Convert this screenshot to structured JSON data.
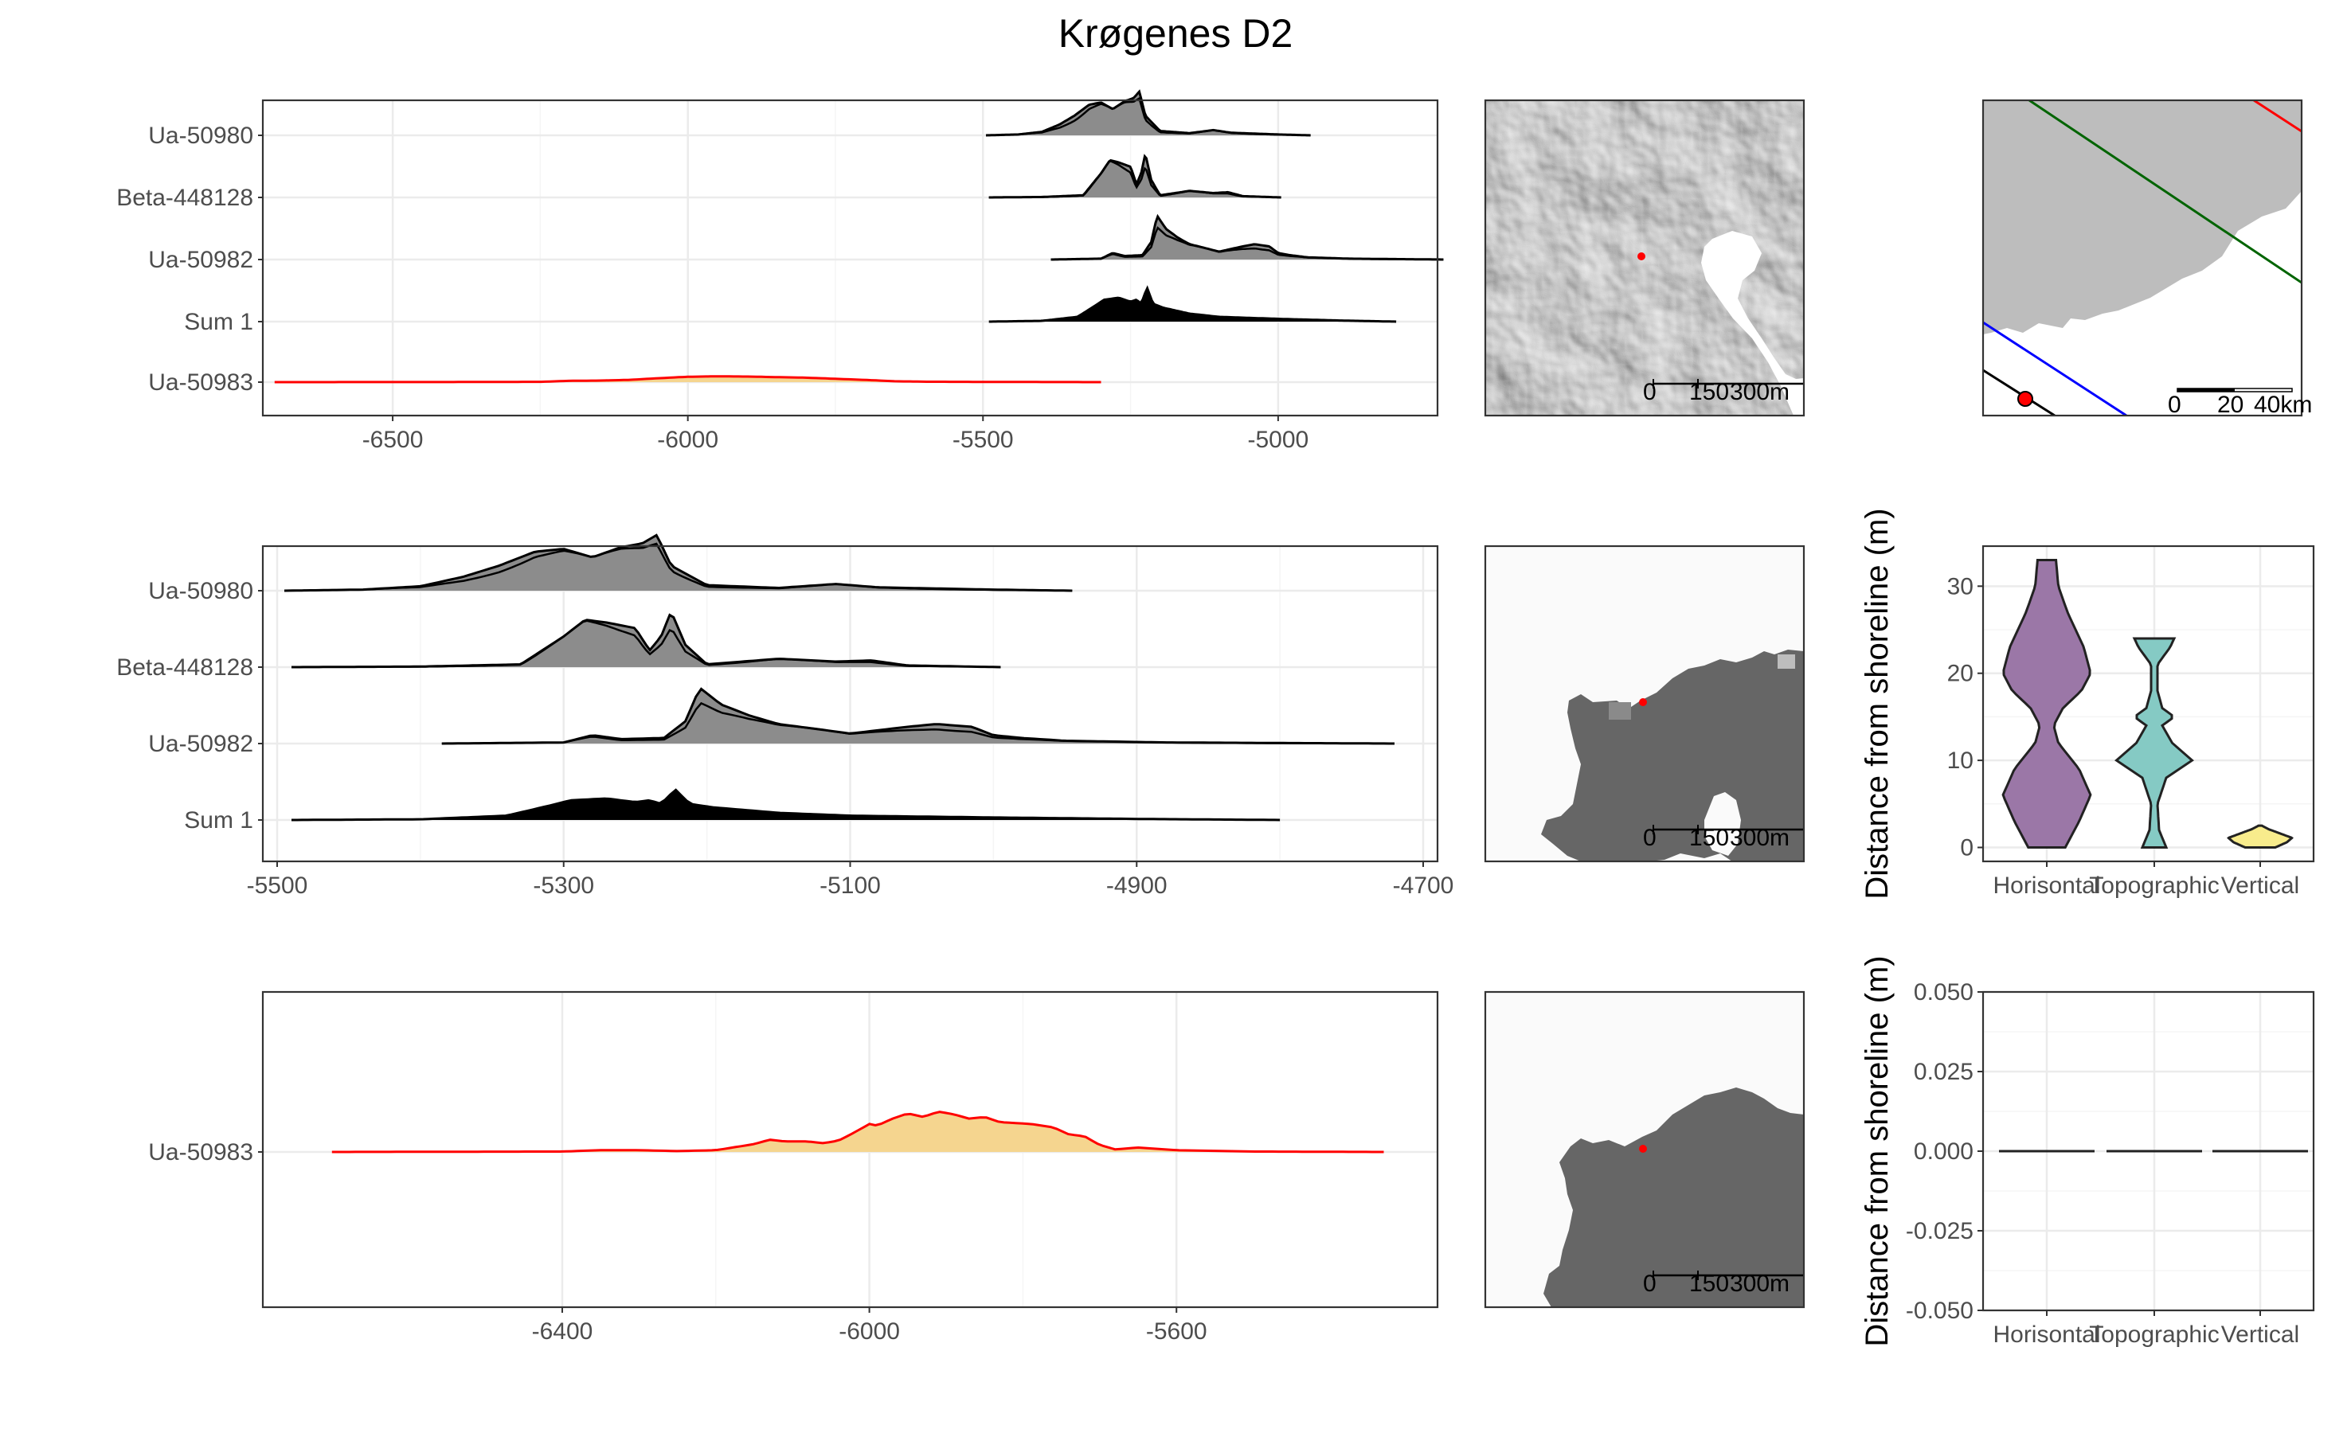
{
  "title": "Krøgenes D2",
  "colors": {
    "panel_border": "#333333",
    "grid_major": "#ebebeb",
    "grid_minor": "#f5f5f5",
    "dated_line": "#000000",
    "dated_fill": "#8c8c8c",
    "sum_fill": "#000000",
    "outlier_line": "#ff0000",
    "outlier_fill": "#f5d58f",
    "violin_horisontal": "#9b77a7",
    "violin_topographic": "#85cac4",
    "violin_vertical": "#f8ec8c",
    "map_land": "#bdbdbd",
    "sea_level_red": "#ff0000",
    "sea_level_green": "#006400",
    "sea_level_blue": "#0000ff",
    "sea_level_black": "#000000",
    "raster_land": "#666666",
    "raster_sea": "#fafafa"
  },
  "maps": {
    "hillshade": {
      "scale_labels": [
        "0",
        "150",
        "300m"
      ]
    },
    "sea_raster_1": {
      "scale_labels": [
        "0",
        "150",
        "300m"
      ]
    },
    "sea_raster_2": {
      "scale_labels": [
        "0",
        "150",
        "300m"
      ]
    },
    "overview": {
      "scale_labels": [
        "0",
        "20",
        "40km"
      ]
    }
  },
  "chart_data": [
    {
      "id": "dates_all",
      "type": "area",
      "xlim": [
        -6720,
        -4730
      ],
      "x_ticks": [
        -6500,
        -6000,
        -5500,
        -5000
      ],
      "x_tick_labels": [
        "-6500",
        "-6000",
        "-5500",
        "-5000"
      ],
      "categories": [
        "Ua-50980",
        "Beta-448128",
        "Ua-50982",
        "Sum 1",
        "Ua-50983"
      ],
      "series": [
        {
          "name": "Ua-50980",
          "kind": "dated",
          "x_range": [
            -5495,
            -4945
          ],
          "profile": [
            [
              -5495,
              0
            ],
            [
              -5440,
              0.02
            ],
            [
              -5400,
              0.08
            ],
            [
              -5370,
              0.25
            ],
            [
              -5345,
              0.45
            ],
            [
              -5320,
              0.7
            ],
            [
              -5300,
              0.75
            ],
            [
              -5280,
              0.6
            ],
            [
              -5260,
              0.78
            ],
            [
              -5245,
              0.85
            ],
            [
              -5235,
              1.0
            ],
            [
              -5225,
              0.45
            ],
            [
              -5200,
              0.1
            ],
            [
              -5150,
              0.05
            ],
            [
              -5110,
              0.12
            ],
            [
              -5080,
              0.06
            ],
            [
              -5000,
              0.02
            ],
            [
              -4945,
              0
            ]
          ]
        },
        {
          "name": "Beta-448128",
          "kind": "dated",
          "x_range": [
            -5490,
            -4995
          ],
          "profile": [
            [
              -5490,
              0
            ],
            [
              -5400,
              0.01
            ],
            [
              -5330,
              0.05
            ],
            [
              -5300,
              0.55
            ],
            [
              -5285,
              0.85
            ],
            [
              -5270,
              0.8
            ],
            [
              -5250,
              0.7
            ],
            [
              -5240,
              0.3
            ],
            [
              -5232,
              0.55
            ],
            [
              -5225,
              1.0
            ],
            [
              -5215,
              0.4
            ],
            [
              -5200,
              0.05
            ],
            [
              -5150,
              0.15
            ],
            [
              -5110,
              0.1
            ],
            [
              -5085,
              0.12
            ],
            [
              -5060,
              0.03
            ],
            [
              -4995,
              0
            ]
          ]
        },
        {
          "name": "Ua-50982",
          "kind": "dated",
          "x_range": [
            -5385,
            -4720
          ],
          "profile": [
            [
              -5385,
              0
            ],
            [
              -5300,
              0.02
            ],
            [
              -5280,
              0.15
            ],
            [
              -5260,
              0.08
            ],
            [
              -5230,
              0.1
            ],
            [
              -5215,
              0.4
            ],
            [
              -5205,
              1.0
            ],
            [
              -5190,
              0.7
            ],
            [
              -5170,
              0.5
            ],
            [
              -5150,
              0.35
            ],
            [
              -5120,
              0.25
            ],
            [
              -5100,
              0.18
            ],
            [
              -5060,
              0.3
            ],
            [
              -5040,
              0.35
            ],
            [
              -5015,
              0.3
            ],
            [
              -5000,
              0.15
            ],
            [
              -4980,
              0.1
            ],
            [
              -4950,
              0.05
            ],
            [
              -4880,
              0.02
            ],
            [
              -4720,
              0
            ]
          ]
        },
        {
          "name": "Sum 1",
          "kind": "sum",
          "x_range": [
            -5490,
            -4800
          ],
          "profile": [
            [
              -5490,
              0
            ],
            [
              -5400,
              0.02
            ],
            [
              -5340,
              0.12
            ],
            [
              -5310,
              0.4
            ],
            [
              -5295,
              0.55
            ],
            [
              -5270,
              0.6
            ],
            [
              -5250,
              0.5
            ],
            [
              -5240,
              0.55
            ],
            [
              -5232,
              0.45
            ],
            [
              -5222,
              0.85
            ],
            [
              -5212,
              0.45
            ],
            [
              -5195,
              0.35
            ],
            [
              -5150,
              0.2
            ],
            [
              -5100,
              0.12
            ],
            [
              -5000,
              0.07
            ],
            [
              -4900,
              0.03
            ],
            [
              -4800,
              0
            ]
          ]
        },
        {
          "name": "Ua-50983",
          "kind": "outlier",
          "x_range": [
            -6700,
            -5300
          ],
          "profile": [
            [
              -6700,
              0
            ],
            [
              -6400,
              0.01
            ],
            [
              -6250,
              0.03
            ],
            [
              -6200,
              0.12
            ],
            [
              -6150,
              0.14
            ],
            [
              -6100,
              0.2
            ],
            [
              -6050,
              0.35
            ],
            [
              -6000,
              0.48
            ],
            [
              -5950,
              0.52
            ],
            [
              -5900,
              0.5
            ],
            [
              -5850,
              0.45
            ],
            [
              -5800,
              0.4
            ],
            [
              -5750,
              0.3
            ],
            [
              -5700,
              0.2
            ],
            [
              -5650,
              0.08
            ],
            [
              -5600,
              0.04
            ],
            [
              -5500,
              0.02
            ],
            [
              -5300,
              0
            ]
          ]
        }
      ]
    },
    {
      "id": "dates_zoom",
      "type": "area",
      "xlim": [
        -5510,
        -4690
      ],
      "x_ticks": [
        -5500,
        -5300,
        -5100,
        -4900,
        -4700
      ],
      "x_tick_labels": [
        "-5500",
        "-5300",
        "-5100",
        "-4900",
        "-4700"
      ],
      "categories": [
        "Ua-50980",
        "Beta-448128",
        "Ua-50982",
        "Sum 1"
      ],
      "series": [
        {
          "name": "Ua-50980",
          "kind": "dated",
          "x_range": [
            -5495,
            -4945
          ]
        },
        {
          "name": "Beta-448128",
          "kind": "dated",
          "x_range": [
            -5490,
            -4995
          ]
        },
        {
          "name": "Ua-50982",
          "kind": "dated",
          "x_range": [
            -5385,
            -4720
          ]
        },
        {
          "name": "Sum 1",
          "kind": "sum",
          "x_range": [
            -5490,
            -4800
          ]
        }
      ]
    },
    {
      "id": "outlier_zoom",
      "type": "area",
      "xlim": [
        -6790,
        -5260
      ],
      "x_ticks": [
        -6400,
        -6000,
        -5600
      ],
      "x_tick_labels": [
        "-6400",
        "-6000",
        "-5600"
      ],
      "categories": [
        "Ua-50983"
      ],
      "series": [
        {
          "name": "Ua-50983",
          "kind": "outlier",
          "x_range": [
            -6700,
            -5330
          ],
          "profile": [
            [
              -6700,
              0
            ],
            [
              -6400,
              0.005
            ],
            [
              -6350,
              0.02
            ],
            [
              -6300,
              0.02
            ],
            [
              -6250,
              0.01
            ],
            [
              -6200,
              0.02
            ],
            [
              -6150,
              0.09
            ],
            [
              -6130,
              0.14
            ],
            [
              -6110,
              0.12
            ],
            [
              -6080,
              0.12
            ],
            [
              -6060,
              0.1
            ],
            [
              -6040,
              0.13
            ],
            [
              -6020,
              0.22
            ],
            [
              -6000,
              0.32
            ],
            [
              -5990,
              0.3
            ],
            [
              -5970,
              0.38
            ],
            [
              -5950,
              0.44
            ],
            [
              -5930,
              0.4
            ],
            [
              -5910,
              0.46
            ],
            [
              -5890,
              0.43
            ],
            [
              -5870,
              0.38
            ],
            [
              -5850,
              0.4
            ],
            [
              -5830,
              0.34
            ],
            [
              -5810,
              0.33
            ],
            [
              -5790,
              0.32
            ],
            [
              -5760,
              0.28
            ],
            [
              -5740,
              0.2
            ],
            [
              -5720,
              0.18
            ],
            [
              -5700,
              0.08
            ],
            [
              -5680,
              0.03
            ],
            [
              -5650,
              0.05
            ],
            [
              -5600,
              0.02
            ],
            [
              -5500,
              0.005
            ],
            [
              -5330,
              0
            ]
          ]
        }
      ]
    },
    {
      "id": "distance_violin",
      "type": "violin",
      "ylabel": "Distance from shoreline (m)",
      "categories": [
        "Horisontal",
        "Topographic",
        "Vertical"
      ],
      "ylim": [
        -1.6,
        34.6
      ],
      "y_ticks": [
        0,
        10,
        20,
        30
      ],
      "y_tick_labels": [
        "0",
        "10",
        "20",
        "30"
      ],
      "violins": [
        {
          "name": "Horisontal",
          "min": 0,
          "max": 33,
          "density": [
            [
              0,
              0.4
            ],
            [
              3,
              0.7
            ],
            [
              6,
              0.95
            ],
            [
              9,
              0.7
            ],
            [
              12,
              0.25
            ],
            [
              14,
              0.15
            ],
            [
              16,
              0.35
            ],
            [
              18,
              0.75
            ],
            [
              20,
              0.95
            ],
            [
              23,
              0.8
            ],
            [
              27,
              0.45
            ],
            [
              30,
              0.25
            ],
            [
              33,
              0.2
            ]
          ]
        },
        {
          "name": "Topographic",
          "min": 0,
          "max": 24,
          "density": [
            [
              0,
              0.3
            ],
            [
              2,
              0.12
            ],
            [
              5,
              0.08
            ],
            [
              8,
              0.3
            ],
            [
              10,
              0.95
            ],
            [
              12,
              0.45
            ],
            [
              14,
              0.2
            ],
            [
              15,
              0.5
            ],
            [
              16,
              0.2
            ],
            [
              18,
              0.08
            ],
            [
              21,
              0.08
            ],
            [
              23,
              0.4
            ],
            [
              24,
              0.5
            ]
          ]
        },
        {
          "name": "Vertical",
          "min": 0,
          "max": 2.5,
          "density": [
            [
              0,
              0.45
            ],
            [
              0.6,
              0.8
            ],
            [
              1.1,
              0.95
            ],
            [
              1.6,
              0.6
            ],
            [
              2.1,
              0.25
            ],
            [
              2.5,
              0.05
            ]
          ]
        }
      ]
    },
    {
      "id": "distance_empty",
      "type": "violin",
      "ylabel": "Distance from shoreline (m)",
      "categories": [
        "Horisontal",
        "Topographic",
        "Vertical"
      ],
      "ylim": [
        -0.05,
        0.05
      ],
      "y_ticks": [
        0.05,
        0.025,
        0,
        -0.025,
        -0.05
      ],
      "y_tick_labels": [
        "0.050",
        "0.025",
        "0.000",
        "-0.025",
        "-0.050"
      ],
      "values": [
        0,
        0,
        0
      ]
    }
  ]
}
